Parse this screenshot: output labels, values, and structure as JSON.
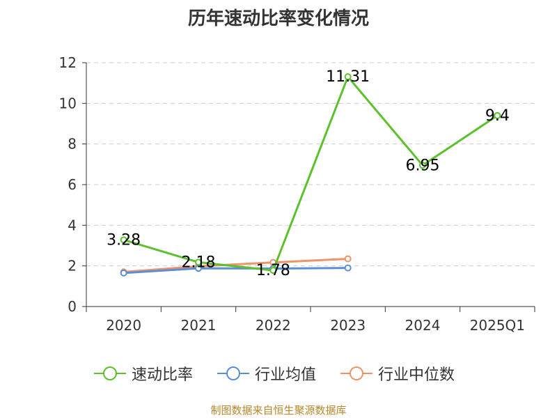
{
  "chart_data": {
    "type": "line",
    "title": "历年速动比率变化情况",
    "categories": [
      "2020",
      "2021",
      "2022",
      "2023",
      "2024",
      "2025Q1"
    ],
    "y_ticks": [
      "0",
      "2",
      "4",
      "6",
      "8",
      "10",
      "12"
    ],
    "ylim": [
      0,
      12
    ],
    "grid": true,
    "legend_position": "bottom",
    "series": [
      {
        "name": "速动比率",
        "color": "#5cc12d",
        "values": [
          3.28,
          2.18,
          1.78,
          11.31,
          6.95,
          9.4
        ],
        "labels": [
          "3.28",
          "2.18",
          "1.78",
          "11.31",
          "6.95",
          "9.4"
        ]
      },
      {
        "name": "行业均值",
        "color": "#5b8ed6",
        "values": [
          1.65,
          1.88,
          1.87,
          1.9,
          null,
          null
        ]
      },
      {
        "name": "行业中位数",
        "color": "#f0926a",
        "values": [
          1.7,
          1.98,
          2.17,
          2.35,
          null,
          null
        ]
      }
    ]
  },
  "source": "制图数据来自恒生聚源数据库"
}
